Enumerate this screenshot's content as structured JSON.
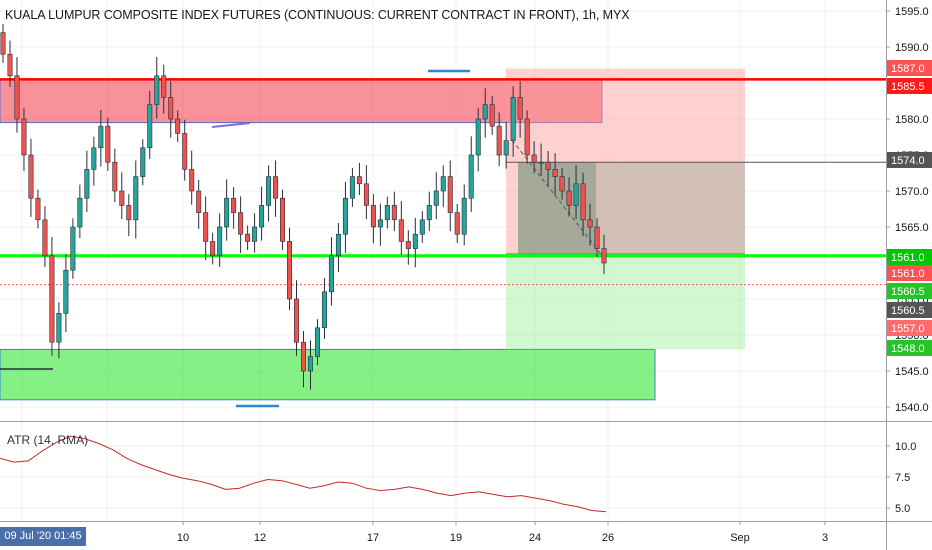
{
  "title": "KUALA LUMPUR COMPOSITE INDEX FUTURES (CONTINUOUS: CURRENT CONTRACT IN FRONT), 1h, MYX",
  "indicator_label": "ATR (14, RMA)",
  "crosshair_date": "09 Jul '20  01:45",
  "colors": {
    "up": "#26a69a",
    "down": "#ef5350",
    "resistance_zone": "#f23645",
    "support_zone": "#22e322",
    "level_red": "#ff0000",
    "level_green": "#00ff00",
    "atr_line": "#c62828"
  },
  "price_axis": {
    "ticks": [
      "1595.0",
      "1590.0",
      "1585.0",
      "1580.0",
      "1575.0",
      "1570.0",
      "1565.0",
      "1560.0",
      "1555.0",
      "1550.0",
      "1545.0",
      "1540.0"
    ],
    "badges": [
      {
        "text": "1587.0",
        "color": "#ff5252"
      },
      {
        "text": "1585.5",
        "color": "#ff1a1a"
      },
      {
        "text": "1574.0",
        "color": "#555555"
      },
      {
        "text": "1561.0",
        "color": "#00c800"
      },
      {
        "text": "1561.0",
        "color": "#ff5252"
      },
      {
        "text": "1560.5",
        "color": "#26c426"
      },
      {
        "text": "1560.5",
        "color": "#555555"
      },
      {
        "text": "1557.0",
        "color": "#ff6b6b"
      },
      {
        "text": "1548.0",
        "color": "#26c426"
      }
    ]
  },
  "atr_axis": {
    "ticks": [
      "10.0",
      "7.5",
      "5.0"
    ]
  },
  "time_axis": {
    "ticks": [
      "10",
      "12",
      "17",
      "19",
      "24",
      "26",
      "Sep",
      "3"
    ]
  },
  "chart_data": [
    {
      "type": "candlestick",
      "title": "KUALA LUMPUR COMPOSITE INDEX FUTURES (CONTINUOUS: CURRENT CONTRACT IN FRONT), 1h, MYX",
      "ylim": [
        1537,
        1599
      ],
      "x_ticks": [
        "10",
        "12",
        "17",
        "19",
        "24",
        "26",
        "Sep",
        "3"
      ],
      "approx_close_series": [
        1589,
        1586,
        1580,
        1575,
        1569,
        1566,
        1561,
        1549,
        1553,
        1559,
        1565,
        1569,
        1573,
        1576,
        1579,
        1574,
        1570,
        1568,
        1566,
        1572,
        1576,
        1582,
        1586,
        1583,
        1580,
        1578,
        1573,
        1570,
        1567,
        1563,
        1561,
        1565,
        1569,
        1567,
        1564,
        1563,
        1565,
        1568,
        1572,
        1569,
        1563,
        1555,
        1549,
        1545,
        1547,
        1551,
        1556,
        1561,
        1564,
        1569,
        1572,
        1571,
        1568,
        1565,
        1566,
        1568,
        1566,
        1563,
        1562,
        1564,
        1566,
        1568,
        1570,
        1572,
        1567,
        1564,
        1569,
        1575,
        1580,
        1582,
        1579,
        1575,
        1577,
        1583,
        1580,
        1575,
        1574,
        1574,
        1573,
        1572,
        1570,
        1568,
        1571,
        1566,
        1565,
        1562,
        1560
      ],
      "zones": [
        {
          "name": "resistance zone",
          "from": 1579.5,
          "to": 1585.5
        },
        {
          "name": "support zone",
          "from": 1541,
          "to": 1548
        }
      ],
      "levels": [
        1585.5,
        1561.0
      ],
      "position": {
        "entry": 1561.0,
        "stop": 1587.0,
        "target": 1548.0,
        "zone_top": 1574.0
      }
    },
    {
      "type": "line",
      "title": "ATR (14, RMA)",
      "ylim": [
        4.2,
        12.2
      ],
      "y_ticks": [
        10.0,
        7.5,
        5.0
      ],
      "values": [
        9.0,
        8.7,
        8.8,
        9.6,
        10.3,
        10.8,
        10.6,
        10.2,
        9.7,
        9.0,
        8.5,
        8.1,
        7.7,
        7.4,
        7.2,
        6.9,
        6.5,
        6.6,
        7.0,
        7.3,
        7.2,
        6.9,
        6.6,
        6.8,
        7.1,
        7.0,
        6.6,
        6.4,
        6.5,
        6.7,
        6.5,
        6.2,
        6.0,
        6.2,
        6.3,
        6.1,
        5.9,
        6.0,
        5.8,
        5.6,
        5.3,
        5.1,
        4.8,
        4.7
      ]
    }
  ]
}
